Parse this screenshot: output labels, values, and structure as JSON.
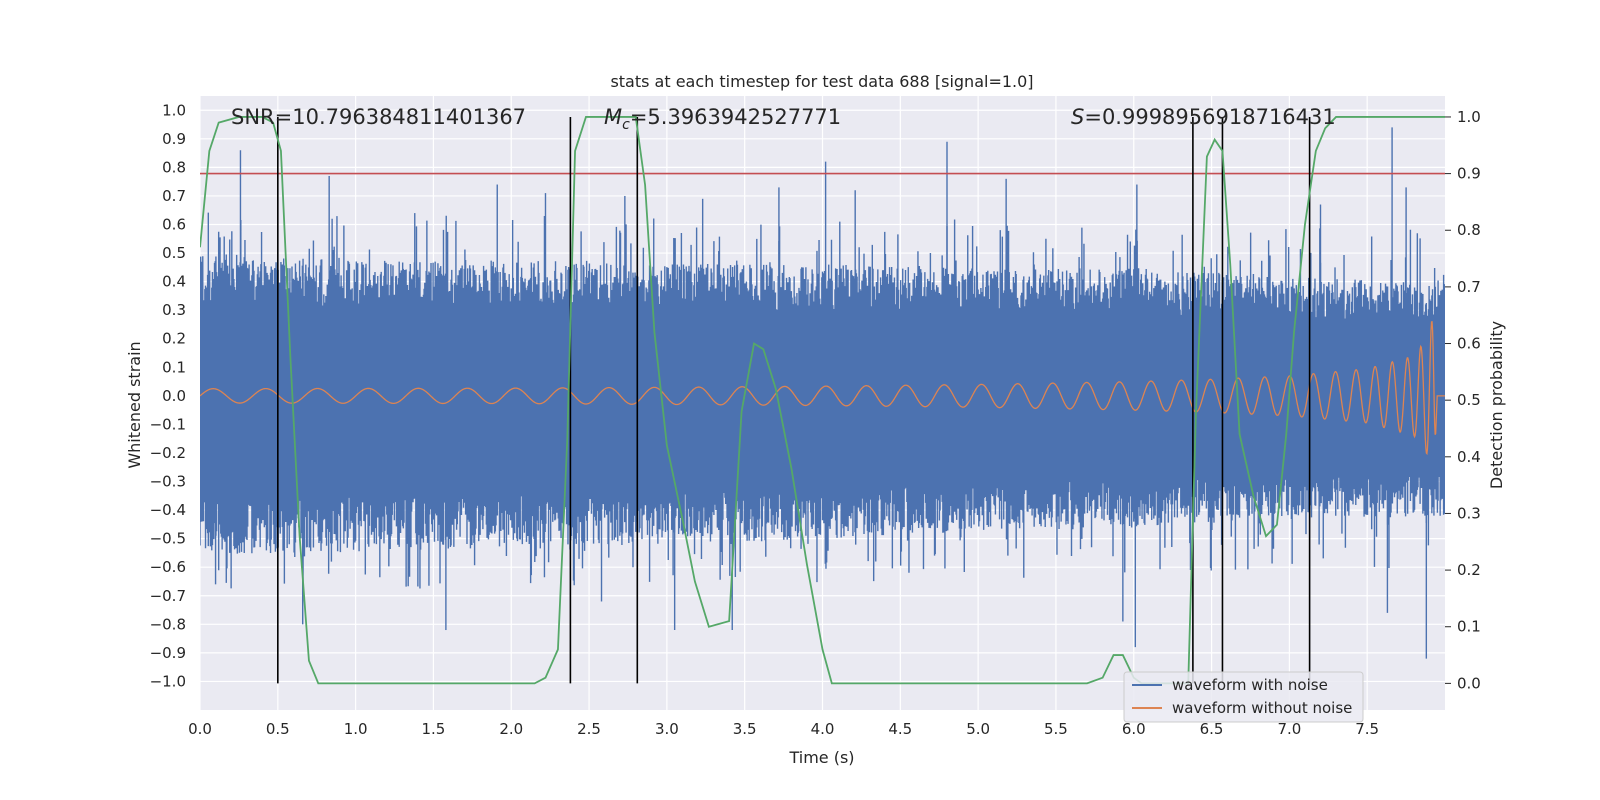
{
  "chart_data": {
    "type": "line",
    "title": "stats at each timestep for test data 688 [signal=1.0]",
    "xlabel": "Time (s)",
    "ylabel": "Whitened strain",
    "y2label": "Detection probability",
    "xlim": [
      0.0,
      8.0
    ],
    "ylim": [
      -1.1,
      1.05
    ],
    "y2lim": [
      -0.047,
      1.037
    ],
    "xticks": [
      "0.0",
      "0.5",
      "1.0",
      "1.5",
      "2.0",
      "2.5",
      "3.0",
      "3.5",
      "4.0",
      "4.5",
      "5.0",
      "5.5",
      "6.0",
      "6.5",
      "7.0",
      "7.5"
    ],
    "xtick_values": [
      0.0,
      0.5,
      1.0,
      1.5,
      2.0,
      2.5,
      3.0,
      3.5,
      4.0,
      4.5,
      5.0,
      5.5,
      6.0,
      6.5,
      7.0,
      7.5
    ],
    "yticks": [
      "1.0",
      "0.9",
      "0.8",
      "0.7",
      "0.6",
      "0.5",
      "0.4",
      "0.3",
      "0.2",
      "0.1",
      "0.0",
      "−0.1",
      "−0.2",
      "−0.3",
      "−0.4",
      "−0.5",
      "−0.6",
      "−0.7",
      "−0.8",
      "−0.9",
      "−1.0"
    ],
    "ytick_values": [
      1.0,
      0.9,
      0.8,
      0.7,
      0.6,
      0.5,
      0.4,
      0.3,
      0.2,
      0.1,
      0.0,
      -0.1,
      -0.2,
      -0.3,
      -0.4,
      -0.5,
      -0.6,
      -0.7,
      -0.8,
      -0.9,
      -1.0
    ],
    "y2ticks": [
      "1.0",
      "0.9",
      "0.8",
      "0.7",
      "0.6",
      "0.5",
      "0.4",
      "0.3",
      "0.2",
      "0.1",
      "0.0"
    ],
    "y2tick_values": [
      1.0,
      0.9,
      0.8,
      0.7,
      0.6,
      0.5,
      0.4,
      0.3,
      0.2,
      0.1,
      0.0
    ],
    "annotations": {
      "snr": "SNR=10.796384811401367",
      "mc_symbol": "M",
      "mc_sub": "c",
      "mc_value": "=5.3963942527771",
      "s_symbol": "S",
      "s_value": "=0.9998956918716431"
    },
    "threshold": {
      "y": 0.9,
      "color": "#c44e52"
    },
    "vertical_lines": [
      0.5,
      2.38,
      2.81,
      6.38,
      6.57,
      7.13
    ],
    "noisy_waveform": {
      "name": "waveform with noise",
      "color": "#4c72b0",
      "envelope_upper": [
        [
          0.0,
          0.35
        ],
        [
          1.0,
          0.34
        ],
        [
          2.0,
          0.34
        ],
        [
          3.0,
          0.33
        ],
        [
          4.0,
          0.33
        ],
        [
          5.0,
          0.32
        ],
        [
          6.0,
          0.32
        ],
        [
          7.0,
          0.3
        ],
        [
          8.0,
          0.28
        ]
      ],
      "envelope_lower": [
        [
          0.0,
          -0.4
        ],
        [
          1.0,
          -0.39
        ],
        [
          2.0,
          -0.38
        ],
        [
          3.0,
          -0.37
        ],
        [
          4.0,
          -0.36
        ],
        [
          5.0,
          -0.34
        ],
        [
          6.0,
          -0.33
        ],
        [
          7.0,
          -0.31
        ],
        [
          8.0,
          -0.3
        ]
      ],
      "spikes": [
        [
          0.26,
          0.86
        ],
        [
          0.83,
          0.77
        ],
        [
          1.38,
          0.64
        ],
        [
          1.91,
          0.74
        ],
        [
          2.22,
          0.71
        ],
        [
          2.73,
          0.7
        ],
        [
          3.23,
          0.69
        ],
        [
          3.72,
          0.73
        ],
        [
          4.02,
          0.82
        ],
        [
          4.21,
          0.72
        ],
        [
          4.8,
          0.89
        ],
        [
          5.18,
          0.76
        ],
        [
          6.02,
          0.74
        ],
        [
          7.2,
          0.67
        ],
        [
          7.66,
          0.94
        ],
        [
          7.75,
          0.73
        ],
        [
          1.58,
          -0.82
        ],
        [
          0.66,
          -0.8
        ],
        [
          3.05,
          -0.82
        ],
        [
          3.42,
          -0.82
        ],
        [
          5.93,
          -0.79
        ],
        [
          6.01,
          -0.88
        ],
        [
          7.63,
          -0.76
        ],
        [
          7.88,
          -0.92
        ],
        [
          0.1,
          -0.66
        ],
        [
          2.58,
          -0.72
        ]
      ]
    },
    "clean_waveform": {
      "name": "waveform without noise",
      "color": "#dd8452",
      "envelope": [
        [
          0.0,
          0.025
        ],
        [
          1.0,
          0.026
        ],
        [
          2.0,
          0.027
        ],
        [
          3.0,
          0.03
        ],
        [
          4.0,
          0.034
        ],
        [
          5.0,
          0.04
        ],
        [
          6.0,
          0.05
        ],
        [
          6.5,
          0.058
        ],
        [
          7.0,
          0.07
        ],
        [
          7.5,
          0.095
        ],
        [
          7.8,
          0.14
        ],
        [
          7.88,
          0.2
        ],
        [
          7.93,
          0.29
        ],
        [
          7.95,
          0.0
        ],
        [
          8.0,
          0.0
        ]
      ]
    },
    "detection_probability": {
      "color": "#55a868",
      "points": [
        [
          0.0,
          0.77
        ],
        [
          0.06,
          0.94
        ],
        [
          0.12,
          0.99
        ],
        [
          0.25,
          1.0
        ],
        [
          0.4,
          1.0
        ],
        [
          0.47,
          0.99
        ],
        [
          0.52,
          0.94
        ],
        [
          0.58,
          0.58
        ],
        [
          0.64,
          0.26
        ],
        [
          0.7,
          0.04
        ],
        [
          0.76,
          0.0
        ],
        [
          1.0,
          0.0
        ],
        [
          1.5,
          0.0
        ],
        [
          2.0,
          0.0
        ],
        [
          2.15,
          0.0
        ],
        [
          2.22,
          0.01
        ],
        [
          2.3,
          0.06
        ],
        [
          2.36,
          0.43
        ],
        [
          2.41,
          0.94
        ],
        [
          2.48,
          1.0
        ],
        [
          2.7,
          1.0
        ],
        [
          2.8,
          1.0
        ],
        [
          2.86,
          0.88
        ],
        [
          2.92,
          0.62
        ],
        [
          3.0,
          0.42
        ],
        [
          3.1,
          0.29
        ],
        [
          3.18,
          0.18
        ],
        [
          3.27,
          0.1
        ],
        [
          3.4,
          0.11
        ],
        [
          3.48,
          0.48
        ],
        [
          3.56,
          0.6
        ],
        [
          3.62,
          0.59
        ],
        [
          3.7,
          0.52
        ],
        [
          3.8,
          0.38
        ],
        [
          3.9,
          0.21
        ],
        [
          4.0,
          0.06
        ],
        [
          4.06,
          0.0
        ],
        [
          4.5,
          0.0
        ],
        [
          5.0,
          0.0
        ],
        [
          5.5,
          0.0
        ],
        [
          5.7,
          0.0
        ],
        [
          5.8,
          0.01
        ],
        [
          5.87,
          0.05
        ],
        [
          5.93,
          0.05
        ],
        [
          6.0,
          0.01
        ],
        [
          6.05,
          0.0
        ],
        [
          6.35,
          0.0
        ],
        [
          6.4,
          0.48
        ],
        [
          6.47,
          0.93
        ],
        [
          6.52,
          0.96
        ],
        [
          6.57,
          0.94
        ],
        [
          6.62,
          0.74
        ],
        [
          6.68,
          0.44
        ],
        [
          6.77,
          0.33
        ],
        [
          6.85,
          0.26
        ],
        [
          6.92,
          0.28
        ],
        [
          6.98,
          0.44
        ],
        [
          7.03,
          0.62
        ],
        [
          7.1,
          0.81
        ],
        [
          7.17,
          0.94
        ],
        [
          7.23,
          0.98
        ],
        [
          7.3,
          1.0
        ],
        [
          7.6,
          1.0
        ],
        [
          8.0,
          1.0
        ]
      ]
    },
    "legend": {
      "placement": "lower-right",
      "entries": [
        "waveform with noise",
        "waveform without noise"
      ]
    }
  }
}
